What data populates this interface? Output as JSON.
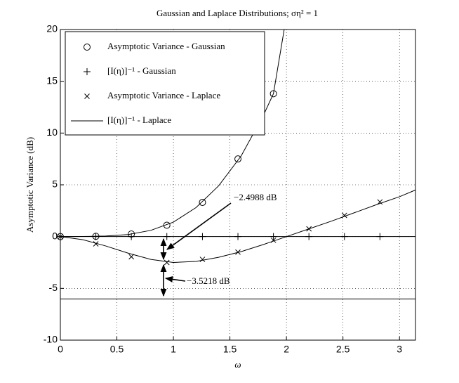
{
  "chart_data": {
    "type": "line",
    "title": "Gaussian and Laplace Distributions; ση² = 1",
    "x_label": "ω",
    "y_label": "Asymptotic Variance (dB)",
    "xlim": [
      0,
      3.1416
    ],
    "ylim": [
      -10,
      20
    ],
    "xticks": [
      0,
      0.5,
      1,
      1.5,
      2,
      2.5,
      3
    ],
    "yticks": [
      -10,
      -5,
      0,
      5,
      10,
      15,
      20
    ],
    "grid": true,
    "legend": "upper left",
    "series": [
      {
        "name": "Asymptotic Variance - Gaussian",
        "marker": "circle",
        "color": "#000000",
        "x": [
          0,
          0.314,
          0.628,
          0.942,
          1.257,
          1.571,
          1.885
        ],
        "values": [
          0,
          0.03,
          0.25,
          1.1,
          3.3,
          7.5,
          13.8
        ]
      },
      {
        "name": "[I(η)]⁻¹ - Gaussian",
        "marker": "plus",
        "color": "#000000",
        "x": [
          0,
          0.314,
          0.628,
          0.942,
          1.257,
          1.571,
          1.885,
          2.199,
          2.513,
          2.827
        ],
        "values": [
          0,
          0,
          0,
          0,
          0,
          0,
          0,
          0,
          0,
          0
        ]
      },
      {
        "name": "Asymptotic Variance - Laplace",
        "marker": "x",
        "color": "#000000",
        "x": [
          0,
          0.314,
          0.628,
          0.942,
          1.257,
          1.571,
          1.885,
          2.199,
          2.513,
          2.827
        ],
        "values": [
          0,
          -0.7,
          -1.95,
          -2.5,
          -2.2,
          -1.5,
          -0.35,
          0.75,
          2.05,
          3.35
        ]
      },
      {
        "name": "[I(η)]⁻¹ - Laplace",
        "marker": "line",
        "color": "#000000",
        "x": [
          0,
          0.2,
          0.4,
          0.6,
          0.8,
          1.0,
          1.2,
          1.4,
          1.6,
          1.8,
          2.0,
          2.2,
          2.4,
          2.6,
          2.8,
          3.0,
          3.1416
        ],
        "values": [
          0,
          -0.3,
          -0.9,
          -1.6,
          -2.2,
          -2.5,
          -2.4,
          -2.0,
          -1.45,
          -0.75,
          0,
          0.75,
          1.5,
          2.3,
          3.1,
          3.85,
          4.5
        ]
      },
      {
        "marker": "line",
        "color": "#000000",
        "x": [
          0,
          0.2,
          0.4,
          0.6,
          0.8,
          1.0,
          1.2,
          1.4,
          1.6,
          1.8,
          1.885,
          1.98
        ],
        "values": [
          0,
          0.01,
          0.05,
          0.2,
          0.6,
          1.4,
          2.8,
          4.9,
          7.8,
          11.8,
          13.8,
          20
        ]
      }
    ],
    "hlines": [
      0,
      -6.02
    ],
    "annotations": [
      "−2.4988 dB",
      "−3.5218 dB"
    ]
  }
}
